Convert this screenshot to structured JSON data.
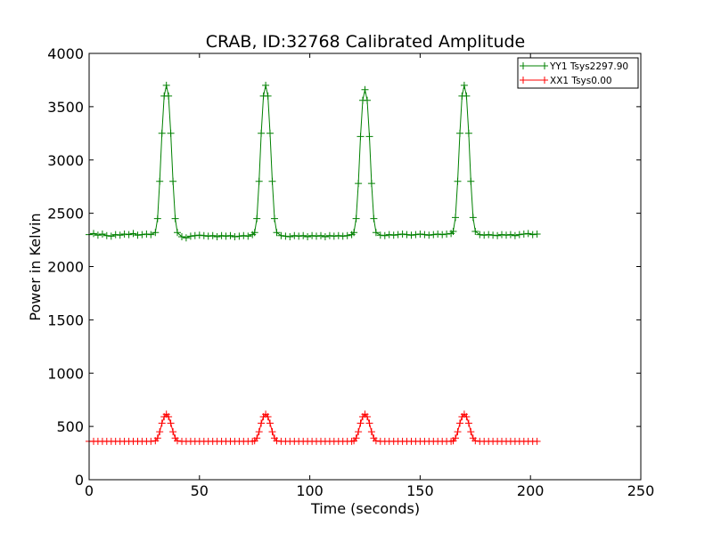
{
  "chart_data": {
    "type": "line",
    "title": "CRAB, ID:32768 Calibrated Amplitude",
    "xlabel": "Time (seconds)",
    "ylabel": "Power in Kelvin",
    "xlim": [
      0,
      250
    ],
    "ylim": [
      0,
      4000
    ],
    "xticks": [
      0,
      50,
      100,
      150,
      200,
      250
    ],
    "yticks": [
      0,
      500,
      1000,
      1500,
      2000,
      2500,
      3000,
      3500,
      4000
    ],
    "xtick_labels": [
      "0",
      "50",
      "100",
      "150",
      "200",
      "250"
    ],
    "ytick_labels": [
      "0",
      "500",
      "1000",
      "1500",
      "2000",
      "2500",
      "3000",
      "3500",
      "4000"
    ],
    "grid": false,
    "legend_position": "top-right",
    "marker": "+",
    "series": [
      {
        "name": "YY1 Tsys2297.90",
        "color": "#008000",
        "x": [
          0,
          2,
          4,
          6,
          8,
          10,
          12,
          14,
          16,
          18,
          20,
          22,
          24,
          26,
          28,
          30,
          31,
          32,
          33,
          34,
          35,
          36,
          37,
          38,
          39,
          40,
          42,
          44,
          46,
          48,
          50,
          52,
          54,
          56,
          58,
          60,
          62,
          64,
          66,
          68,
          70,
          72,
          74,
          75,
          76,
          77,
          78,
          79,
          80,
          81,
          82,
          83,
          84,
          85,
          87,
          89,
          91,
          93,
          95,
          97,
          99,
          101,
          103,
          105,
          107,
          109,
          111,
          113,
          115,
          117,
          119,
          120,
          121,
          122,
          123,
          124,
          125,
          126,
          127,
          128,
          129,
          130,
          132,
          134,
          136,
          138,
          140,
          142,
          144,
          146,
          148,
          150,
          152,
          154,
          156,
          158,
          160,
          162,
          164,
          165,
          166,
          167,
          168,
          169,
          170,
          171,
          172,
          173,
          174,
          175,
          177,
          179,
          181,
          183,
          185,
          187,
          189,
          191,
          193,
          195,
          197,
          199,
          201,
          203
        ],
        "y": [
          2300,
          2310,
          2295,
          2305,
          2290,
          2285,
          2300,
          2295,
          2305,
          2300,
          2310,
          2295,
          2300,
          2305,
          2300,
          2320,
          2450,
          2800,
          3250,
          3600,
          3700,
          3600,
          3250,
          2800,
          2450,
          2320,
          2280,
          2270,
          2285,
          2290,
          2295,
          2290,
          2285,
          2290,
          2280,
          2290,
          2285,
          2290,
          2280,
          2285,
          2290,
          2285,
          2300,
          2320,
          2450,
          2800,
          3250,
          3600,
          3700,
          3600,
          3250,
          2800,
          2450,
          2320,
          2290,
          2285,
          2280,
          2290,
          2285,
          2290,
          2280,
          2290,
          2285,
          2290,
          2280,
          2290,
          2285,
          2290,
          2285,
          2290,
          2300,
          2320,
          2450,
          2780,
          3220,
          3560,
          3660,
          3560,
          3220,
          2780,
          2450,
          2320,
          2295,
          2290,
          2300,
          2295,
          2300,
          2305,
          2300,
          2295,
          2300,
          2305,
          2300,
          2295,
          2300,
          2305,
          2300,
          2305,
          2310,
          2330,
          2460,
          2800,
          3250,
          3600,
          3700,
          3600,
          3250,
          2800,
          2460,
          2330,
          2300,
          2295,
          2300,
          2295,
          2290,
          2300,
          2295,
          2300,
          2290,
          2300,
          2305,
          2310,
          2300,
          2305
        ]
      },
      {
        "name": "XX1 Tsys0.00",
        "color": "#ff0000",
        "x": [
          0,
          2,
          4,
          6,
          8,
          10,
          12,
          14,
          16,
          18,
          20,
          22,
          24,
          26,
          28,
          30,
          31,
          32,
          33,
          34,
          35,
          36,
          37,
          38,
          39,
          40,
          42,
          44,
          46,
          48,
          50,
          52,
          54,
          56,
          58,
          60,
          62,
          64,
          66,
          68,
          70,
          72,
          74,
          75,
          76,
          77,
          78,
          79,
          80,
          81,
          82,
          83,
          84,
          85,
          87,
          89,
          91,
          93,
          95,
          97,
          99,
          101,
          103,
          105,
          107,
          109,
          111,
          113,
          115,
          117,
          119,
          120,
          121,
          122,
          123,
          124,
          125,
          126,
          127,
          128,
          129,
          130,
          132,
          134,
          136,
          138,
          140,
          142,
          144,
          146,
          148,
          150,
          152,
          154,
          156,
          158,
          160,
          162,
          164,
          165,
          166,
          167,
          168,
          169,
          170,
          171,
          172,
          173,
          174,
          175,
          177,
          179,
          181,
          183,
          185,
          187,
          189,
          191,
          193,
          195,
          197,
          199,
          201,
          203
        ],
        "y": [
          360,
          360,
          360,
          360,
          360,
          360,
          360,
          360,
          360,
          360,
          360,
          360,
          360,
          360,
          360,
          365,
          390,
          450,
          530,
          590,
          615,
          590,
          530,
          450,
          390,
          365,
          360,
          360,
          360,
          360,
          360,
          360,
          360,
          360,
          360,
          360,
          360,
          360,
          360,
          360,
          360,
          360,
          360,
          365,
          390,
          450,
          530,
          590,
          615,
          590,
          530,
          450,
          390,
          365,
          360,
          360,
          360,
          360,
          360,
          360,
          360,
          360,
          360,
          360,
          360,
          360,
          360,
          360,
          360,
          360,
          360,
          365,
          390,
          450,
          530,
          590,
          615,
          590,
          530,
          450,
          390,
          365,
          360,
          360,
          360,
          360,
          360,
          360,
          360,
          360,
          360,
          360,
          360,
          360,
          360,
          360,
          360,
          360,
          360,
          365,
          390,
          450,
          530,
          590,
          615,
          590,
          530,
          450,
          390,
          365,
          360,
          360,
          360,
          360,
          360,
          360,
          360,
          360,
          360,
          360,
          360,
          360,
          360,
          360
        ]
      }
    ]
  }
}
